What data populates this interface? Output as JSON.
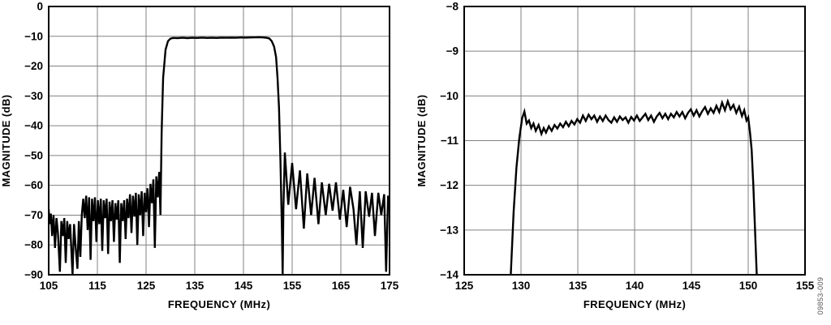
{
  "figure": {
    "watermark": "09853-009",
    "background_color": "#ffffff",
    "grid_color": "#808080",
    "axis_color": "#000000",
    "curve_color": "#000000"
  },
  "chart_data": [
    {
      "id": "left",
      "type": "line",
      "title": "",
      "xlabel": "FREQUENCY (MHz)",
      "ylabel": "MAGNITUDE (dB)",
      "xlim": [
        105,
        175
      ],
      "ylim": [
        -90,
        0
      ],
      "xticks": [
        105,
        115,
        125,
        135,
        145,
        155,
        165,
        175
      ],
      "yticks": [
        0,
        -10,
        -20,
        -30,
        -40,
        -50,
        -60,
        -70,
        -80,
        -90
      ],
      "grid": true,
      "legend": "none",
      "series_name": "bandpass-filter-magnitude-response",
      "points": [
        [
          105.0,
          -68
        ],
        [
          105.2,
          -73
        ],
        [
          105.45,
          -69.5
        ],
        [
          105.7,
          -77
        ],
        [
          106.0,
          -70
        ],
        [
          106.3,
          -81
        ],
        [
          106.6,
          -71
        ],
        [
          106.9,
          -76
        ],
        [
          107.3,
          -89
        ],
        [
          107.6,
          -72
        ],
        [
          107.9,
          -77
        ],
        [
          108.2,
          -71
        ],
        [
          108.5,
          -86
        ],
        [
          108.8,
          -72
        ],
        [
          109.1,
          -78
        ],
        [
          109.4,
          -73
        ],
        [
          109.9,
          -90
        ],
        [
          110.2,
          -73
        ],
        [
          110.5,
          -80
        ],
        [
          110.9,
          -88
        ],
        [
          111.2,
          -72
        ],
        [
          111.5,
          -84
        ],
        [
          111.8,
          -70
        ],
        [
          112.1,
          -64.5
        ],
        [
          112.4,
          -71
        ],
        [
          112.7,
          -63.5
        ],
        [
          113.0,
          -75
        ],
        [
          113.3,
          -64
        ],
        [
          113.6,
          -85
        ],
        [
          113.9,
          -64.5
        ],
        [
          114.2,
          -72
        ],
        [
          114.5,
          -64
        ],
        [
          114.8,
          -79
        ],
        [
          115.1,
          -65
        ],
        [
          115.4,
          -73
        ],
        [
          115.7,
          -64.5
        ],
        [
          116.0,
          -82
        ],
        [
          116.3,
          -65
        ],
        [
          116.6,
          -71
        ],
        [
          116.9,
          -64.5
        ],
        [
          117.2,
          -83
        ],
        [
          117.5,
          -65.5
        ],
        [
          117.8,
          -72
        ],
        [
          118.1,
          -65
        ],
        [
          118.4,
          -79
        ],
        [
          118.7,
          -66
        ],
        [
          119.0,
          -71.5
        ],
        [
          119.3,
          -65
        ],
        [
          119.6,
          -86
        ],
        [
          119.9,
          -66
        ],
        [
          120.2,
          -72
        ],
        [
          120.5,
          -65
        ],
        [
          120.8,
          -78
        ],
        [
          121.1,
          -64.5
        ],
        [
          121.4,
          -71
        ],
        [
          121.7,
          -63
        ],
        [
          122.0,
          -76
        ],
        [
          122.3,
          -63.5
        ],
        [
          122.6,
          -70.5
        ],
        [
          122.9,
          -62.5
        ],
        [
          123.2,
          -80
        ],
        [
          123.5,
          -63
        ],
        [
          123.8,
          -70
        ],
        [
          124.1,
          -62
        ],
        [
          124.4,
          -77
        ],
        [
          124.7,
          -62.5
        ],
        [
          125.0,
          -69
        ],
        [
          125.3,
          -61
        ],
        [
          125.6,
          -74
        ],
        [
          125.9,
          -59.5
        ],
        [
          126.2,
          -66
        ],
        [
          126.5,
          -58
        ],
        [
          126.8,
          -81
        ],
        [
          127.1,
          -57
        ],
        [
          127.4,
          -64
        ],
        [
          127.7,
          -55.5
        ],
        [
          127.95,
          -70
        ],
        [
          128.2,
          -42
        ],
        [
          128.5,
          -24
        ],
        [
          129.0,
          -14.5
        ],
        [
          129.5,
          -11.6
        ],
        [
          130.0,
          -10.8
        ],
        [
          130.5,
          -10.55
        ],
        [
          131.5,
          -10.6
        ],
        [
          132.5,
          -10.5
        ],
        [
          133.5,
          -10.6
        ],
        [
          134.5,
          -10.5
        ],
        [
          135.5,
          -10.55
        ],
        [
          136.5,
          -10.45
        ],
        [
          137.5,
          -10.55
        ],
        [
          138.5,
          -10.5
        ],
        [
          139.5,
          -10.55
        ],
        [
          140.5,
          -10.45
        ],
        [
          141.5,
          -10.5
        ],
        [
          142.5,
          -10.45
        ],
        [
          143.5,
          -10.5
        ],
        [
          144.5,
          -10.4
        ],
        [
          145.5,
          -10.45
        ],
        [
          146.5,
          -10.4
        ],
        [
          147.5,
          -10.35
        ],
        [
          148.3,
          -10.3
        ],
        [
          149.0,
          -10.4
        ],
        [
          149.7,
          -10.5
        ],
        [
          150.3,
          -10.7
        ],
        [
          150.8,
          -11.6
        ],
        [
          151.3,
          -13.5
        ],
        [
          151.7,
          -17
        ],
        [
          152.0,
          -24
        ],
        [
          152.3,
          -34
        ],
        [
          152.6,
          -52
        ],
        [
          152.9,
          -75
        ],
        [
          153.05,
          -90
        ],
        [
          153.2,
          -68
        ],
        [
          153.5,
          -49
        ],
        [
          154.2,
          -66.5
        ],
        [
          155.0,
          -52.5
        ],
        [
          155.8,
          -68
        ],
        [
          156.6,
          -55
        ],
        [
          157.4,
          -74.5
        ],
        [
          158.1,
          -56
        ],
        [
          158.9,
          -70
        ],
        [
          159.6,
          -57.5
        ],
        [
          160.4,
          -73
        ],
        [
          161.1,
          -59
        ],
        [
          161.9,
          -70
        ],
        [
          162.6,
          -59.5
        ],
        [
          163.3,
          -68.5
        ],
        [
          164.0,
          -59
        ],
        [
          164.8,
          -71.5
        ],
        [
          165.5,
          -61.5
        ],
        [
          166.2,
          -74
        ],
        [
          166.9,
          -60.5
        ],
        [
          167.6,
          -68
        ],
        [
          168.2,
          -80
        ],
        [
          168.9,
          -62
        ],
        [
          169.5,
          -81
        ],
        [
          170.1,
          -62
        ],
        [
          170.8,
          -70.5
        ],
        [
          171.4,
          -62.5
        ],
        [
          172.0,
          -77
        ],
        [
          172.7,
          -62.5
        ],
        [
          173.3,
          -70
        ],
        [
          173.9,
          -63
        ],
        [
          174.3,
          -89
        ],
        [
          174.7,
          -63.5
        ],
        [
          175.0,
          -66
        ]
      ]
    },
    {
      "id": "right",
      "type": "line",
      "title": "",
      "xlabel": "FREQUENCY (MHz)",
      "ylabel": "MAGNITUDE (dB)",
      "xlim": [
        125,
        155
      ],
      "ylim": [
        -14,
        -8
      ],
      "xticks": [
        125,
        130,
        135,
        140,
        145,
        150,
        155
      ],
      "yticks": [
        -8,
        -9,
        -10,
        -11,
        -12,
        -13,
        -14
      ],
      "grid": true,
      "legend": "none",
      "series_name": "passband-ripple-detail",
      "points": [
        [
          129.1,
          -14
        ],
        [
          129.35,
          -12.6
        ],
        [
          129.6,
          -11.6
        ],
        [
          129.85,
          -10.95
        ],
        [
          130.1,
          -10.5
        ],
        [
          130.3,
          -10.35
        ],
        [
          130.5,
          -10.62
        ],
        [
          130.7,
          -10.55
        ],
        [
          130.9,
          -10.72
        ],
        [
          131.1,
          -10.62
        ],
        [
          131.3,
          -10.78
        ],
        [
          131.55,
          -10.65
        ],
        [
          131.8,
          -10.85
        ],
        [
          132.0,
          -10.72
        ],
        [
          132.2,
          -10.82
        ],
        [
          132.45,
          -10.68
        ],
        [
          132.7,
          -10.78
        ],
        [
          132.95,
          -10.65
        ],
        [
          133.2,
          -10.73
        ],
        [
          133.45,
          -10.62
        ],
        [
          133.7,
          -10.7
        ],
        [
          133.95,
          -10.58
        ],
        [
          134.2,
          -10.68
        ],
        [
          134.45,
          -10.56
        ],
        [
          134.7,
          -10.64
        ],
        [
          134.95,
          -10.52
        ],
        [
          135.2,
          -10.6
        ],
        [
          135.45,
          -10.44
        ],
        [
          135.7,
          -10.56
        ],
        [
          135.95,
          -10.42
        ],
        [
          136.2,
          -10.52
        ],
        [
          136.45,
          -10.44
        ],
        [
          136.7,
          -10.58
        ],
        [
          136.95,
          -10.46
        ],
        [
          137.2,
          -10.56
        ],
        [
          137.45,
          -10.44
        ],
        [
          137.7,
          -10.54
        ],
        [
          137.95,
          -10.6
        ],
        [
          138.2,
          -10.48
        ],
        [
          138.45,
          -10.58
        ],
        [
          138.7,
          -10.46
        ],
        [
          138.95,
          -10.54
        ],
        [
          139.2,
          -10.48
        ],
        [
          139.45,
          -10.6
        ],
        [
          139.7,
          -10.47
        ],
        [
          139.95,
          -10.55
        ],
        [
          140.2,
          -10.44
        ],
        [
          140.45,
          -10.56
        ],
        [
          140.7,
          -10.48
        ],
        [
          140.95,
          -10.4
        ],
        [
          141.2,
          -10.54
        ],
        [
          141.45,
          -10.44
        ],
        [
          141.7,
          -10.58
        ],
        [
          141.95,
          -10.46
        ],
        [
          142.2,
          -10.38
        ],
        [
          142.45,
          -10.5
        ],
        [
          142.7,
          -10.4
        ],
        [
          142.95,
          -10.52
        ],
        [
          143.2,
          -10.4
        ],
        [
          143.45,
          -10.48
        ],
        [
          143.7,
          -10.36
        ],
        [
          143.95,
          -10.46
        ],
        [
          144.2,
          -10.36
        ],
        [
          144.45,
          -10.5
        ],
        [
          144.7,
          -10.38
        ],
        [
          144.95,
          -10.3
        ],
        [
          145.2,
          -10.44
        ],
        [
          145.45,
          -10.32
        ],
        [
          145.7,
          -10.46
        ],
        [
          145.95,
          -10.34
        ],
        [
          146.2,
          -10.25
        ],
        [
          146.45,
          -10.4
        ],
        [
          146.7,
          -10.28
        ],
        [
          146.95,
          -10.38
        ],
        [
          147.2,
          -10.22
        ],
        [
          147.45,
          -10.36
        ],
        [
          147.7,
          -10.15
        ],
        [
          147.95,
          -10.32
        ],
        [
          148.2,
          -10.12
        ],
        [
          148.45,
          -10.3
        ],
        [
          148.7,
          -10.2
        ],
        [
          148.95,
          -10.38
        ],
        [
          149.2,
          -10.24
        ],
        [
          149.45,
          -10.45
        ],
        [
          149.65,
          -10.32
        ],
        [
          149.85,
          -10.55
        ],
        [
          150.0,
          -10.48
        ],
        [
          150.15,
          -10.8
        ],
        [
          150.3,
          -11.2
        ],
        [
          150.45,
          -12.0
        ],
        [
          150.6,
          -13.0
        ],
        [
          150.75,
          -14
        ]
      ]
    }
  ]
}
